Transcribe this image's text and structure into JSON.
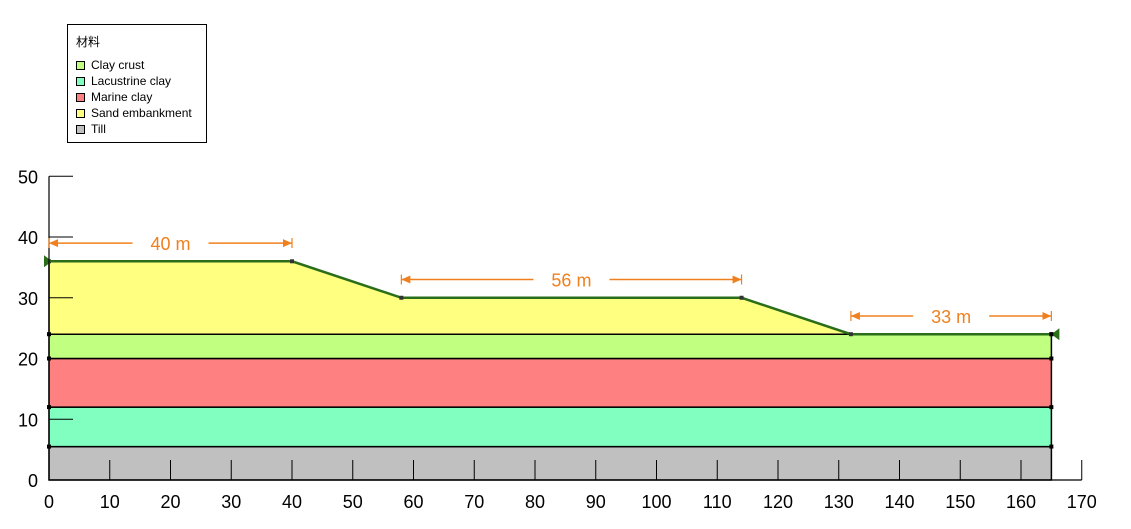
{
  "legend": {
    "title": "材料",
    "items": [
      {
        "label": "Clay crust",
        "color": "#c0ff80"
      },
      {
        "label": "Lacustrine clay",
        "color": "#80ffc0"
      },
      {
        "label": "Marine clay",
        "color": "#ff8080"
      },
      {
        "label": "Sand embankment",
        "color": "#ffff80"
      },
      {
        "label": "Till",
        "color": "#c0c0c0"
      }
    ]
  },
  "axes": {
    "x": {
      "min": 0,
      "max": 170,
      "ticks": [
        0,
        10,
        20,
        30,
        40,
        50,
        60,
        70,
        80,
        90,
        100,
        110,
        120,
        130,
        140,
        150,
        160,
        170
      ]
    },
    "y": {
      "min": 0,
      "max": 50,
      "ticks": [
        0,
        10,
        20,
        30,
        40,
        50
      ]
    }
  },
  "layers": [
    {
      "material": "Till",
      "color": "#c0c0c0",
      "polygon": [
        [
          0,
          0
        ],
        [
          165,
          0
        ],
        [
          165,
          5.5
        ],
        [
          0,
          5.5
        ]
      ]
    },
    {
      "material": "Lacustrine clay",
      "color": "#80ffc0",
      "polygon": [
        [
          0,
          5.5
        ],
        [
          165,
          5.5
        ],
        [
          165,
          12
        ],
        [
          0,
          12
        ]
      ]
    },
    {
      "material": "Marine clay",
      "color": "#ff8080",
      "polygon": [
        [
          0,
          12
        ],
        [
          165,
          12
        ],
        [
          165,
          20
        ],
        [
          0,
          20
        ]
      ]
    },
    {
      "material": "Clay crust",
      "color": "#c0ff80",
      "polygon": [
        [
          0,
          20
        ],
        [
          165,
          20
        ],
        [
          165,
          24
        ],
        [
          0,
          24
        ]
      ]
    },
    {
      "material": "Sand embankment",
      "color": "#ffff80",
      "polygon": [
        [
          0,
          24
        ],
        [
          132,
          24
        ],
        [
          114,
          30
        ],
        [
          58,
          30
        ],
        [
          40,
          36
        ],
        [
          0,
          36
        ]
      ]
    }
  ],
  "ground_surface": [
    [
      0,
      36
    ],
    [
      40,
      36
    ],
    [
      58,
      30
    ],
    [
      114,
      30
    ],
    [
      132,
      24
    ],
    [
      165,
      24
    ]
  ],
  "dimensions": [
    {
      "label": "40 m",
      "x1": 0,
      "x2": 40,
      "y": 39
    },
    {
      "label": "56 m",
      "x1": 58,
      "x2": 114,
      "y": 33
    },
    {
      "label": "33 m",
      "x1": 132,
      "x2": 165,
      "y": 27
    }
  ],
  "colors": {
    "dimension": "#f0801e",
    "surface": "#2a6e1a",
    "outline": "#000000"
  }
}
